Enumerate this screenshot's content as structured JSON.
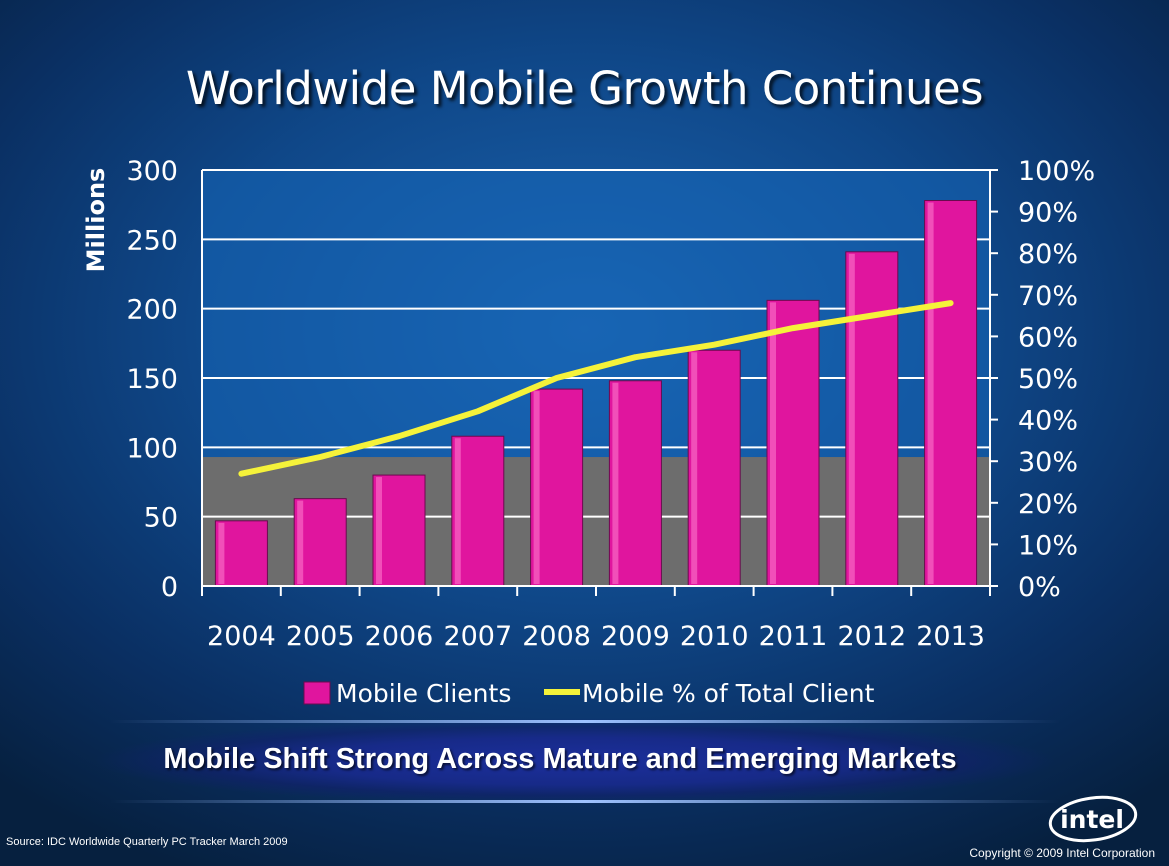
{
  "slide": {
    "title": "Worldwide Mobile Growth Continues",
    "banner": "Mobile Shift Strong Across Mature and Emerging Markets",
    "source": "Source: IDC Worldwide Quarterly PC Tracker March 2009",
    "copyright": "Copyright © 2009 Intel Corporation",
    "logo_text": "intel"
  },
  "colors": {
    "bar": "#e0159e",
    "line": "#f5f23a",
    "plot_bg": "#1566b8",
    "floor": "#6d6d6d"
  },
  "chart_data": {
    "type": "bar",
    "categories": [
      "2004",
      "2005",
      "2006",
      "2007",
      "2008",
      "2009",
      "2010",
      "2011",
      "2012",
      "2013"
    ],
    "series": [
      {
        "name": "Mobile Clients",
        "type": "bar",
        "axis": "left",
        "values": [
          47,
          63,
          80,
          108,
          142,
          148,
          170,
          206,
          241,
          278
        ]
      },
      {
        "name": "Mobile % of Total Client",
        "type": "line",
        "axis": "right",
        "values": [
          27,
          31,
          36,
          42,
          50,
          55,
          58,
          62,
          65,
          68
        ]
      }
    ],
    "ylabel": "Millions",
    "ylim": [
      0,
      300
    ],
    "yticks": [
      0,
      50,
      100,
      150,
      200,
      250,
      300
    ],
    "y2lim": [
      0,
      100
    ],
    "y2ticks": [
      "0%",
      "10%",
      "20%",
      "30%",
      "40%",
      "50%",
      "60%",
      "70%",
      "80%",
      "90%",
      "100%"
    ],
    "shaded_band_max": 93,
    "legend": [
      "Mobile Clients",
      "Mobile % of Total Client"
    ],
    "legend_position": "bottom"
  }
}
